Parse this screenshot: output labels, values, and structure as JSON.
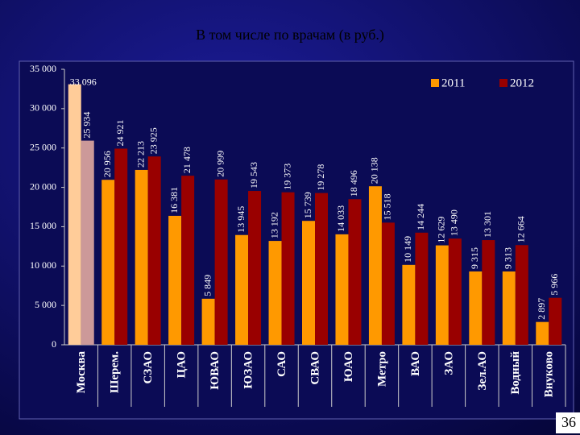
{
  "chart_data": {
    "type": "bar",
    "title": "В том числе по врачам (в руб.)",
    "categories": [
      "Москва",
      "Шерем.",
      "СЗАО",
      "ЦАО",
      "ЮВАО",
      "ЮЗАО",
      "САО",
      "СВАО",
      "ЮАО",
      "Метро",
      "ВАО",
      "ЗАО",
      "Зел.АО",
      "Водный",
      "Внуково"
    ],
    "series": [
      {
        "name": "2011",
        "color": "#ff9900",
        "colors": [
          "#ffcc99",
          "#ff9900",
          "#ff9900",
          "#ff9900",
          "#ff9900",
          "#ff9900",
          "#ff9900",
          "#ff9900",
          "#ff9900",
          "#ff9900",
          "#ff9900",
          "#ff9900",
          "#ff9900",
          "#ff9900",
          "#ff9900"
        ],
        "values": [
          33096,
          20956,
          22213,
          16381,
          5849,
          13945,
          13192,
          15739,
          14033,
          20138,
          10149,
          12629,
          9315,
          9313,
          2897
        ],
        "value_labels": [
          "33 096",
          "20 956",
          "22 213",
          "16 381",
          "5 849",
          "13 945",
          "13 192",
          "15 739",
          "14 033",
          "20 138",
          "10 149",
          "12 629",
          "9 315",
          "9 313",
          "2 897"
        ]
      },
      {
        "name": "2012",
        "color": "#990000",
        "colors": [
          "#cc9999",
          "#990000",
          "#990000",
          "#990000",
          "#990000",
          "#990000",
          "#990000",
          "#990000",
          "#990000",
          "#990000",
          "#990000",
          "#990000",
          "#990000",
          "#990000",
          "#990000"
        ],
        "values": [
          25934,
          24921,
          23925,
          21478,
          20999,
          19543,
          19373,
          19278,
          18496,
          15518,
          14244,
          13490,
          13301,
          12664,
          5966
        ],
        "value_labels": [
          "25 934",
          "24 921",
          "23 925",
          "21 478",
          "20 999",
          "19 543",
          "19 373",
          "19 278",
          "18 496",
          "15 518",
          "14 244",
          "13 490",
          "13 301",
          "12 664",
          "5 966"
        ]
      }
    ],
    "ylim": [
      0,
      35000
    ],
    "yticks": [
      0,
      {
        "value": 5000,
        "label": "5 000"
      },
      {
        "value": 10000,
        "label": "10 000"
      },
      {
        "value": 15000,
        "label": "15 000"
      },
      {
        "value": 20000,
        "label": "20 000"
      },
      {
        "value": 25000,
        "label": "25 000"
      },
      {
        "value": 30000,
        "label": "30 000"
      },
      {
        "value": 35000,
        "label": "35 000"
      }
    ],
    "grid": false,
    "legend": "top-right"
  },
  "page_number": "36"
}
